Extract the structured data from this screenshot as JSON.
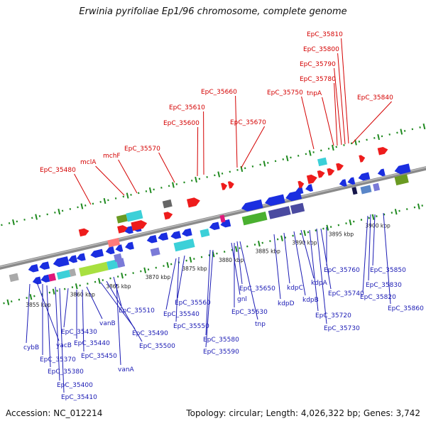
{
  "title": "Erwinia pyrifoliae Ep1/96 chromosome, complete genome",
  "footer": {
    "accession": "Accession: NC_012214",
    "summary": "Topology: circular; Length: 4,026,322 bp; Genes: 3,742"
  },
  "colors": {
    "forward_label": "#d40000",
    "reverse_label": "#1a1ab4",
    "backbone": "#8a8a8a",
    "dots": "#1f8a1f",
    "fwd_arrow": "#ee1c1c",
    "rev_arrow": "#1a2ee0"
  },
  "ticks": [
    "3855 kbp",
    "3860 kbp",
    "3865 kbp",
    "3870 kbp",
    "3875 kbp",
    "3880 kbp",
    "3885 kbp",
    "3890 kbp",
    "3895 kbp",
    "3900 kbp"
  ],
  "forward_labels": [
    "EpC_35480",
    "mclA",
    "mchF",
    "EpC_35570",
    "EpC_35600",
    "EpC_35610",
    "EpC_35660",
    "EpC_35670",
    "EpC_35750",
    "tnpA",
    "EpC_35780",
    "EpC_35790",
    "EpC_35800",
    "EpC_35810",
    "EpC_35840"
  ],
  "reverse_labels": [
    "cybB",
    "yacB",
    "EpC_35370",
    "EpC_35380",
    "EpC_35400",
    "EpC_35410",
    "EpC_35430",
    "EpC_35440",
    "EpC_35450",
    "vanB",
    "EpC_35490",
    "EpC_35500",
    "EpC_35510",
    "vanA",
    "EpC_35540",
    "EpC_35550",
    "EpC_35560",
    "EpC_35580",
    "EpC_35590",
    "gnl",
    "EpC_35630",
    "EpC_35650",
    "tnp",
    "kdpD",
    "kdpC",
    "kdpB",
    "kdpA",
    "EpC_35720",
    "EpC_35730",
    "EpC_35740",
    "EpC_35760",
    "EpC_35820",
    "EpC_35830",
    "EpC_35850",
    "EpC_35860"
  ]
}
